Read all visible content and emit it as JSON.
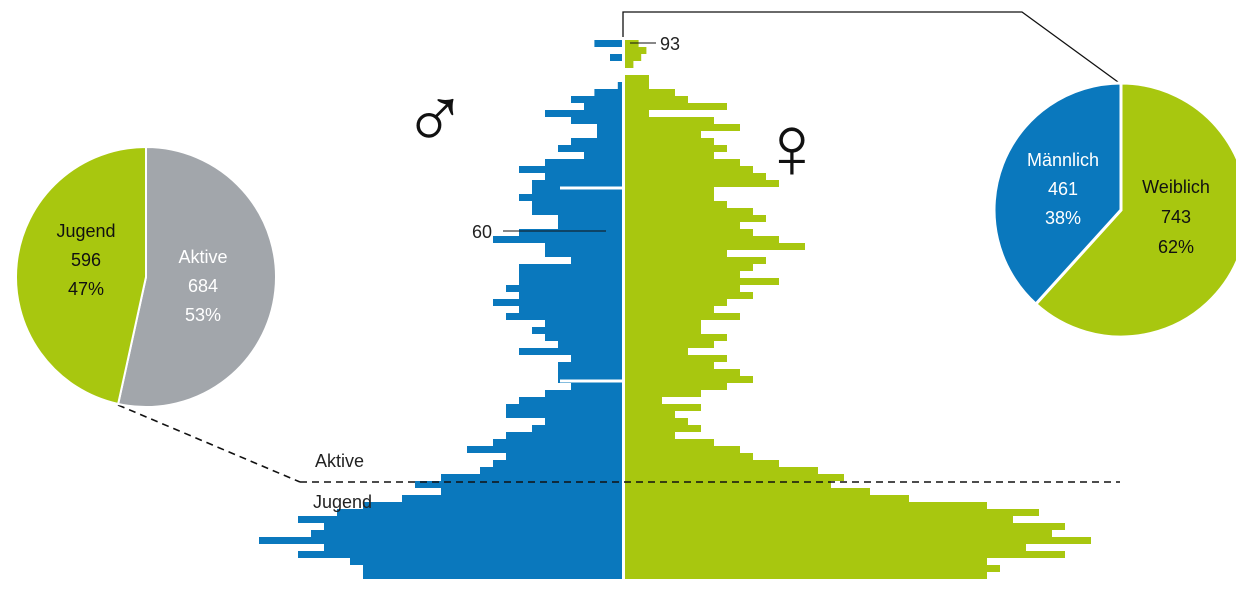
{
  "colors": {
    "male": "#0a78bd",
    "female": "#a8c70f",
    "active": "#a2a6ab",
    "ink": "#111111",
    "white": "#ffffff"
  },
  "symbols": {
    "male": "♂",
    "female": "♀"
  },
  "chart_data": [
    {
      "type": "bar",
      "name": "population-pyramid",
      "y_order": "top-to-bottom",
      "series_keys": [
        "male",
        "female"
      ],
      "male": [
        11,
        0,
        5,
        0,
        0,
        0,
        2,
        11,
        20,
        15,
        30,
        20,
        10,
        10,
        20,
        25,
        15,
        30,
        40,
        30,
        35,
        35,
        40,
        35,
        35,
        25,
        25,
        40,
        50,
        30,
        30,
        20,
        40,
        40,
        40,
        45,
        40,
        50,
        40,
        45,
        30,
        35,
        30,
        25,
        40,
        20,
        25,
        25,
        25,
        20,
        30,
        40,
        45,
        45,
        30,
        35,
        45,
        50,
        60,
        45,
        50,
        55,
        70,
        80,
        70,
        85,
        100,
        110,
        125,
        115,
        120,
        140,
        115,
        125,
        105,
        100,
        100
      ],
      "female": [
        6,
        9,
        7,
        4,
        0,
        10,
        10,
        20,
        25,
        40,
        10,
        35,
        45,
        30,
        35,
        40,
        35,
        45,
        50,
        55,
        60,
        35,
        35,
        40,
        50,
        55,
        45,
        50,
        60,
        70,
        40,
        55,
        50,
        45,
        60,
        45,
        50,
        40,
        35,
        45,
        30,
        30,
        40,
        35,
        25,
        40,
        35,
        45,
        50,
        40,
        30,
        15,
        30,
        20,
        25,
        30,
        20,
        35,
        45,
        50,
        60,
        75,
        85,
        80,
        95,
        110,
        140,
        160,
        150,
        170,
        165,
        180,
        155,
        170,
        140,
        145,
        140
      ],
      "highlight": [
        {
          "label": "93",
          "series": "female",
          "row": 0
        },
        {
          "label": "60",
          "series": "male",
          "row": 28
        }
      ],
      "divider": {
        "upper_label": "Aktive",
        "lower_label": "Jugend",
        "row": 61
      }
    },
    {
      "type": "pie",
      "name": "age-groups",
      "slices": [
        {
          "label": "Aktive",
          "value": 684,
          "percent": "53%",
          "color_key": "active"
        },
        {
          "label": "Jugend",
          "value": 596,
          "percent": "47%",
          "color_key": "female"
        }
      ]
    },
    {
      "type": "pie",
      "name": "gender",
      "slices": [
        {
          "label": "Weiblich",
          "value": 743,
          "percent": "62%",
          "color_key": "female"
        },
        {
          "label": "Männlich",
          "value": 461,
          "percent": "38%",
          "color_key": "male"
        }
      ]
    }
  ]
}
